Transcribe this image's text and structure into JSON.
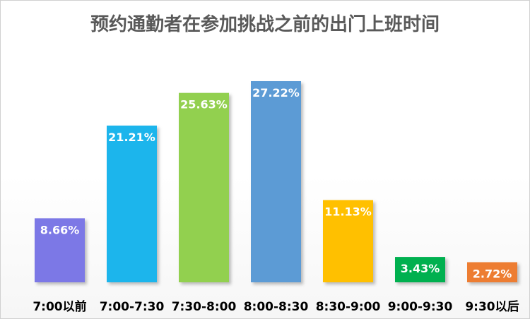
{
  "chart_data": {
    "type": "bar",
    "title": "预约通勤者在参加挑战之前的出门上班时间",
    "categories": [
      "7:00以前",
      "7:00-7:30",
      "7:30-8:00",
      "8:00-8:30",
      "8:30-9:00",
      "9:00-9:30",
      "9:30以后"
    ],
    "values": [
      8.66,
      21.21,
      25.63,
      27.22,
      11.13,
      3.43,
      2.72
    ],
    "data_labels": [
      "8.66%",
      "21.21%",
      "25.63%",
      "27.22%",
      "11.13%",
      "3.43%",
      "2.72%"
    ],
    "colors": [
      "#7b78e6",
      "#1fb5ec",
      "#92d050",
      "#5b9bd5",
      "#ffc000",
      "#00b050",
      "#ed7d31"
    ],
    "ylim": [
      0,
      30
    ],
    "grid": false,
    "legend": "none"
  }
}
